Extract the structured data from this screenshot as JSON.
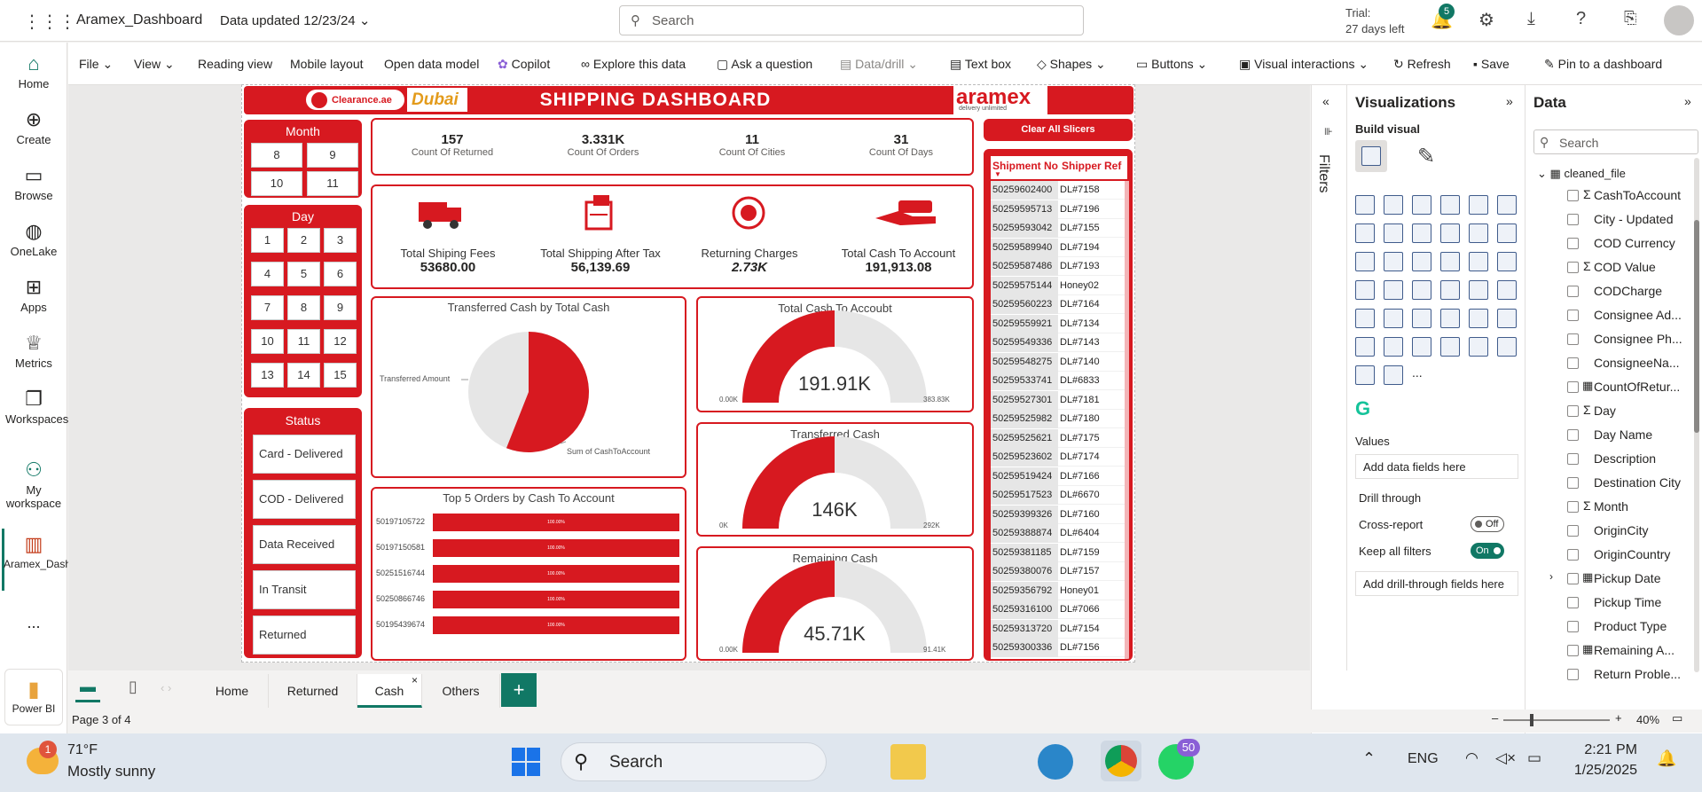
{
  "app": {
    "title": "Aramex_Dashboard",
    "data_updated": "Data updated 12/23/24",
    "search_placeholder": "Search",
    "trial_line1": "Trial:",
    "trial_line2": "27 days left",
    "notif_count": "5"
  },
  "rail": {
    "items": [
      {
        "label": "Home"
      },
      {
        "label": "Create"
      },
      {
        "label": "Browse"
      },
      {
        "label": "OneLake"
      },
      {
        "label": "Apps"
      },
      {
        "label": "Metrics"
      },
      {
        "label": "Workspaces"
      },
      {
        "label": "My workspace"
      },
      {
        "label": "Aramex_Dashboard"
      }
    ],
    "more": "...",
    "powerbi": "Power BI"
  },
  "ribbon": {
    "file": "File",
    "view": "View",
    "reading": "Reading view",
    "mobile": "Mobile layout",
    "open_model": "Open data model",
    "copilot": "Copilot",
    "explore": "Explore this data",
    "ask": "Ask a question",
    "drill": "Data/drill",
    "textbox": "Text box",
    "shapes": "Shapes",
    "buttons": "Buttons",
    "visual_inter": "Visual interactions",
    "refresh": "Refresh",
    "save": "Save",
    "pin": "Pin to a dashboard"
  },
  "report": {
    "title": "SHIPPING DASHBOARD",
    "logo_clearance": "Clearance.ae",
    "logo_dubai": "Dubai",
    "logo_aramex": "aramex",
    "logo_aramex_sub": "delivery unlimited",
    "month_title": "Month",
    "months": [
      "8",
      "9",
      "10",
      "11"
    ],
    "day_title": "Day",
    "days": [
      "1",
      "2",
      "3",
      "4",
      "5",
      "6",
      "7",
      "8",
      "9",
      "10",
      "11",
      "12",
      "13",
      "14",
      "15"
    ],
    "status_title": "Status",
    "statuses": [
      "Card - Delivered",
      "COD - Delivered",
      "Data Received",
      "In Transit",
      "Returned"
    ],
    "kpis": [
      {
        "value": "157",
        "label": "Count Of Returned"
      },
      {
        "value": "3.331K",
        "label": "Count Of Orders"
      },
      {
        "value": "11",
        "label": "Count Of Cities"
      },
      {
        "value": "31",
        "label": "Count Of Days"
      }
    ],
    "cards": [
      {
        "label": "Total Shiping Fees",
        "value": "53680.00"
      },
      {
        "label": "Total Shipping After Tax",
        "value": "56,139.69"
      },
      {
        "label": "Returning Charges",
        "value": "2.73K"
      },
      {
        "label": "Total Cash To Account",
        "value": "191,913.08"
      }
    ],
    "pie": {
      "title": "Transferred  Cash by Total Cash",
      "label_a": "Transferred Amount",
      "label_b": "Sum of CashToAccount",
      "fraction_b": 0.56
    },
    "bars": {
      "title": "Top 5 Orders by Cash To Account",
      "rows": [
        {
          "id": "50197105722",
          "pct": "100.00%"
        },
        {
          "id": "50197150581",
          "pct": "100.00%"
        },
        {
          "id": "50251516744",
          "pct": "100.00%"
        },
        {
          "id": "50250866746",
          "pct": "100.00%"
        },
        {
          "id": "50195439674",
          "pct": "100.00%"
        }
      ]
    },
    "gauges": [
      {
        "title": "Total Cash To Accoubt",
        "value": "191.91K",
        "min": "0.00K",
        "max": "383.83K",
        "fraction": 0.5
      },
      {
        "title": "Transferred Cash",
        "value": "146K",
        "min": "0K",
        "max": "292K",
        "fraction": 0.5
      },
      {
        "title": "Remaining Cash",
        "value": "45.71K",
        "min": "0.00K",
        "max": "91.41K",
        "fraction": 0.5
      }
    ],
    "clear": "Clear All Slicers",
    "table": {
      "headers": [
        "Shipment No",
        "Shipper Ref"
      ],
      "rows": [
        [
          "50259602400",
          "DL#7158"
        ],
        [
          "50259595713",
          "DL#7196"
        ],
        [
          "50259593042",
          "DL#7155"
        ],
        [
          "50259589940",
          "DL#7194"
        ],
        [
          "50259587486",
          "DL#7193"
        ],
        [
          "50259575144",
          "Honey02"
        ],
        [
          "50259560223",
          "DL#7164"
        ],
        [
          "50259559921",
          "DL#7134"
        ],
        [
          "50259549336",
          "DL#7143"
        ],
        [
          "50259548275",
          "DL#7140"
        ],
        [
          "50259533741",
          "DL#6833"
        ],
        [
          "50259527301",
          "DL#7181"
        ],
        [
          "50259525982",
          "DL#7180"
        ],
        [
          "50259525621",
          "DL#7175"
        ],
        [
          "50259523602",
          "DL#7174"
        ],
        [
          "50259519424",
          "DL#7166"
        ],
        [
          "50259517523",
          "DL#6670"
        ],
        [
          "50259399326",
          "DL#7160"
        ],
        [
          "50259388874",
          "DL#6404"
        ],
        [
          "50259381185",
          "DL#7159"
        ],
        [
          "50259380076",
          "DL#7157"
        ],
        [
          "50259356792",
          "Honey01"
        ],
        [
          "50259316100",
          "DL#7066"
        ],
        [
          "50259313720",
          "DL#7154"
        ],
        [
          "50259300336",
          "DL#7156"
        ]
      ]
    }
  },
  "filters": {
    "label": "Filters"
  },
  "viz": {
    "title": "Visualizations",
    "build": "Build visual",
    "values": "Values",
    "add_fields": "Add data fields here",
    "drill": "Drill through",
    "cross": "Cross-report",
    "cross_state": "Off",
    "keep": "Keep all filters",
    "keep_state": "On",
    "add_drill": "Add drill-through fields here",
    "more": "..."
  },
  "data_pane": {
    "title": "Data",
    "search_placeholder": "Search",
    "table": "cleaned_file",
    "fields": [
      {
        "name": "CashToAccount",
        "sigma": true
      },
      {
        "name": "City - Updated"
      },
      {
        "name": "COD Currency"
      },
      {
        "name": "COD Value",
        "sigma": true
      },
      {
        "name": "CODCharge"
      },
      {
        "name": "Consignee Ad..."
      },
      {
        "name": "Consignee Ph..."
      },
      {
        "name": "ConsigneeNa..."
      },
      {
        "name": "CountOfRetur...",
        "calc": true
      },
      {
        "name": "Day",
        "sigma": true
      },
      {
        "name": "Day Name"
      },
      {
        "name": "Description"
      },
      {
        "name": "Destination City"
      },
      {
        "name": "Month",
        "sigma": true
      },
      {
        "name": "OriginCity"
      },
      {
        "name": "OriginCountry"
      },
      {
        "name": "Pickup Date",
        "calc": true
      },
      {
        "name": "Pickup Time"
      },
      {
        "name": "Product Type"
      },
      {
        "name": "Remaining A...",
        "calc": true
      },
      {
        "name": "Return Proble..."
      }
    ]
  },
  "pages": {
    "tabs": [
      "Home",
      "Returned",
      "Cash",
      "Others"
    ],
    "active": "Cash",
    "page_info": "Page 3 of 4",
    "zoom": "40%"
  },
  "taskbar": {
    "temp": "71°F",
    "weather": "Mostly sunny",
    "weather_badge": "1",
    "search": "Search",
    "lang": "ENG",
    "time": "2:21 PM",
    "date": "1/25/2025",
    "wa_badge": "50"
  },
  "colors": {
    "red": "#d71920",
    "grey": "#e6e6e6",
    "teal": "#117865"
  }
}
